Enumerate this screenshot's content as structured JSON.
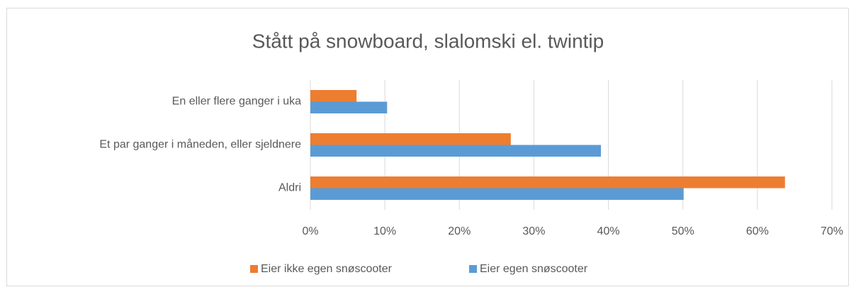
{
  "chart_data": {
    "type": "hbar",
    "title": "Stått på snowboard, slalomski el. twintip",
    "categories": [
      "En eller flere ganger i uka",
      "Et par ganger i måneden, eller sjeldnere",
      "Aldri"
    ],
    "series": [
      {
        "name": "Eier ikke egen snøscooter",
        "color": "#ed7d31",
        "values": [
          6.2,
          26.9,
          63.7
        ]
      },
      {
        "name": "Eier egen snøscooter",
        "color": "#5b9bd5",
        "values": [
          10.3,
          39.0,
          50.1
        ]
      }
    ],
    "xlim": [
      0,
      70
    ],
    "xticks": [
      {
        "value": 0,
        "label": "0%"
      },
      {
        "value": 10,
        "label": "10%"
      },
      {
        "value": 20,
        "label": "20%"
      },
      {
        "value": 30,
        "label": "30%"
      },
      {
        "value": 40,
        "label": "40%"
      },
      {
        "value": 50,
        "label": "50%"
      },
      {
        "value": 60,
        "label": "60%"
      },
      {
        "value": 70,
        "label": "70%"
      }
    ],
    "grid": true,
    "legend": "bottom"
  }
}
